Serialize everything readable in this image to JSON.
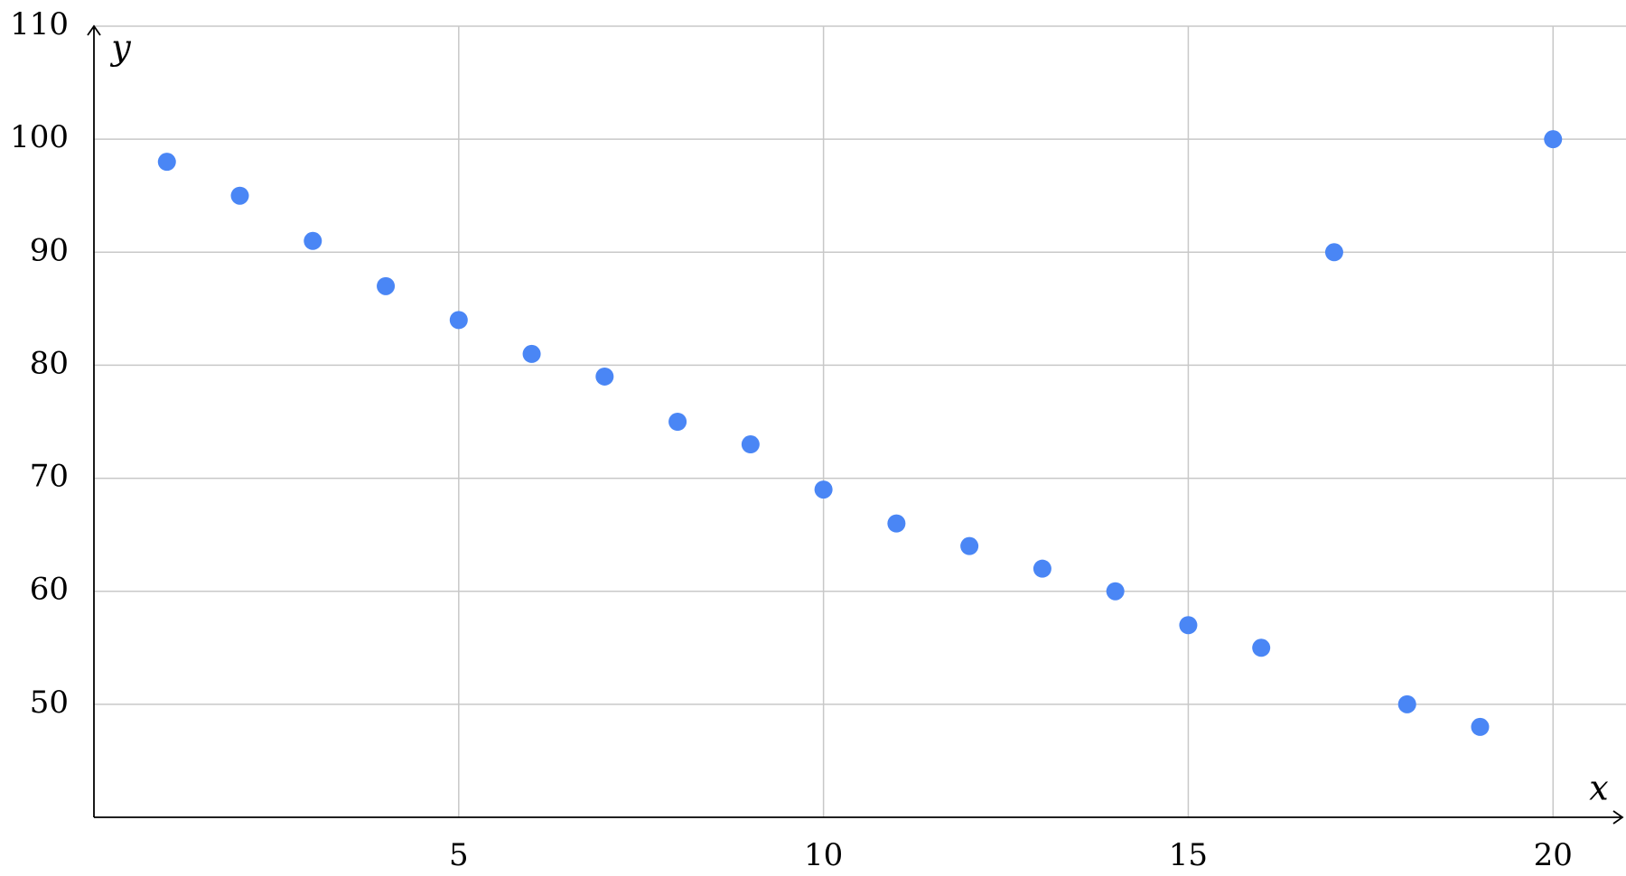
{
  "chart_data": {
    "type": "scatter",
    "x_label": "x",
    "y_label": "y",
    "x": [
      1,
      2,
      3,
      4,
      5,
      6,
      7,
      8,
      9,
      10,
      11,
      12,
      13,
      14,
      15,
      16,
      17,
      18,
      19,
      20
    ],
    "values": [
      98,
      95,
      91,
      87,
      84,
      81,
      79,
      75,
      73,
      69,
      66,
      64,
      62,
      60,
      57,
      55,
      90,
      50,
      48,
      100
    ],
    "color": "#4a86f5",
    "xlim": [
      0,
      21
    ],
    "ylim": [
      40,
      110
    ],
    "xticks": [
      5,
      10,
      15,
      20
    ],
    "yticks": [
      50,
      60,
      70,
      80,
      90,
      100,
      110
    ],
    "grid": true
  }
}
